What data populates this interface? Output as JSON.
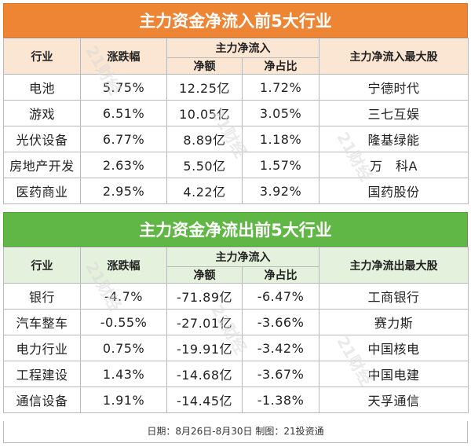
{
  "inflow": {
    "title": "主力资金净流入前5大行业",
    "headers": {
      "industry": "行业",
      "change": "涨跌幅",
      "net_group": "主力净流入",
      "net_amount": "净额",
      "net_ratio": "净占比",
      "top_stock": "主力净流入最大股"
    },
    "rows": [
      {
        "industry": "电池",
        "change": "5.75%",
        "amount": "12.25亿",
        "ratio": "1.72%",
        "stock": "宁德时代"
      },
      {
        "industry": "游戏",
        "change": "6.51%",
        "amount": "10.05亿",
        "ratio": "3.05%",
        "stock": "三七互娱"
      },
      {
        "industry": "光伏设备",
        "change": "6.77%",
        "amount": "8.89亿",
        "ratio": "1.18%",
        "stock": "隆基绿能"
      },
      {
        "industry": "房地产开发",
        "change": "2.63%",
        "amount": "5.50亿",
        "ratio": "1.57%",
        "stock": "万　科A"
      },
      {
        "industry": "医药商业",
        "change": "2.95%",
        "amount": "4.22亿",
        "ratio": "3.92%",
        "stock": "国药股份"
      }
    ]
  },
  "outflow": {
    "title": "主力资金净流出前5大行业",
    "headers": {
      "industry": "行业",
      "change": "涨跌幅",
      "net_group": "主力净流入",
      "net_amount": "净额",
      "net_ratio": "净占比",
      "top_stock": "主力净流出最大股"
    },
    "rows": [
      {
        "industry": "银行",
        "change": "-4.7%",
        "amount": "-71.89亿",
        "ratio": "-6.47%",
        "stock": "工商银行"
      },
      {
        "industry": "汽车整车",
        "change": "-0.55%",
        "amount": "-27.01亿",
        "ratio": "-3.66%",
        "stock": "赛力斯"
      },
      {
        "industry": "电力行业",
        "change": "0.75%",
        "amount": "-19.91亿",
        "ratio": "-3.42%",
        "stock": "中国核电"
      },
      {
        "industry": "工程建设",
        "change": "1.43%",
        "amount": "-14.68亿",
        "ratio": "-3.67%",
        "stock": "中国电建"
      },
      {
        "industry": "通信设备",
        "change": "1.91%",
        "amount": "-14.45亿",
        "ratio": "-1.38%",
        "stock": "天孚通信"
      }
    ]
  },
  "footer": "日期：8月26日-8月30日 制图：21投资通",
  "watermark": "21财经",
  "colors": {
    "inflow_accent": "#ee8535",
    "inflow_header": "#fbe5d3",
    "outflow_accent": "#60b746",
    "outflow_header": "#e4f1dc"
  }
}
